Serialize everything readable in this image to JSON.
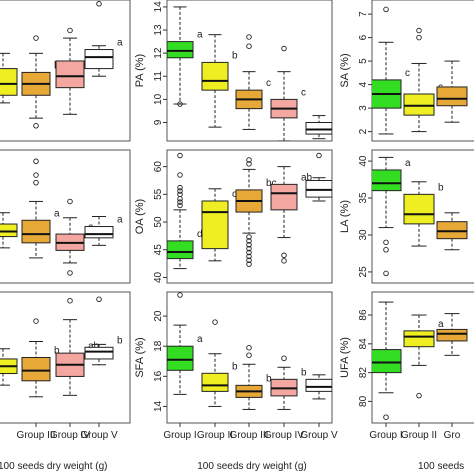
{
  "figure": {
    "bottom_labels": [
      "100 seeds dry weight (g)",
      "100 seeds dry weight (g)",
      "100 seeds"
    ]
  },
  "chart_data": [
    {
      "type": "boxplot",
      "position": "row1-col1",
      "categories": [
        "Group I",
        "Group II",
        "Group III",
        "Group IV",
        "Group V"
      ],
      "ylabel": "",
      "yticks": [],
      "ylim": [
        6.9,
        10.6
      ],
      "xticklabels_shown": false,
      "boxes": [
        {
          "group": "Group I",
          "min": 7.8,
          "q1": 8.0,
          "median": 8.3,
          "q3": 8.7,
          "max": 9.1,
          "outliers": [],
          "color": "#33dd22",
          "letter": ""
        },
        {
          "group": "Group II",
          "min": 7.9,
          "q1": 8.1,
          "median": 8.4,
          "q3": 8.8,
          "max": 9.2,
          "outliers": [],
          "color": "#eeee22",
          "letter": ""
        },
        {
          "group": "Group III",
          "min": 7.5,
          "q1": 8.1,
          "median": 8.4,
          "q3": 8.7,
          "max": 9.2,
          "outliers": [
            7.3,
            9.6
          ],
          "color": "#e8a838",
          "letter": "b"
        },
        {
          "group": "Group IV",
          "min": 7.6,
          "q1": 8.3,
          "median": 8.6,
          "q3": 9.0,
          "max": 9.6,
          "outliers": [
            9.8
          ],
          "color": "#f4a7a0",
          "letter": "b"
        },
        {
          "group": "Group V",
          "min": 8.6,
          "q1": 8.8,
          "median": 9.1,
          "q3": 9.3,
          "max": 9.4,
          "outliers": [
            10.5
          ],
          "color": "#ffffff",
          "letter": "a"
        }
      ]
    },
    {
      "type": "boxplot",
      "position": "row1-col2",
      "categories": [
        "Group I",
        "Group II",
        "Group III",
        "Group IV",
        "Group V"
      ],
      "ylabel": "PA (%)",
      "yticks": [
        9,
        10,
        11,
        12,
        13,
        14
      ],
      "ylim": [
        8.2,
        14.3
      ],
      "xticklabels_shown": false,
      "boxes": [
        {
          "group": "Group I",
          "min": 9.8,
          "q1": 11.8,
          "median": 12.1,
          "q3": 12.5,
          "max": 14.0,
          "outliers": [
            9.8
          ],
          "color": "#33dd22",
          "letter": "a"
        },
        {
          "group": "Group II",
          "min": 8.8,
          "q1": 10.4,
          "median": 10.8,
          "q3": 11.6,
          "max": 12.8,
          "outliers": [],
          "color": "#eeee22",
          "letter": "b"
        },
        {
          "group": "Group III",
          "min": 8.7,
          "q1": 9.6,
          "median": 10.0,
          "q3": 10.4,
          "max": 11.2,
          "outliers": [
            12.3,
            12.7
          ],
          "color": "#e8a838",
          "letter": "c"
        },
        {
          "group": "Group IV",
          "min": 8.2,
          "q1": 9.2,
          "median": 9.6,
          "q3": 10.0,
          "max": 11.2,
          "outliers": [
            12.2
          ],
          "color": "#f4a7a0",
          "letter": "c"
        },
        {
          "group": "Group V",
          "min": 8.3,
          "q1": 8.5,
          "median": 8.7,
          "q3": 9.0,
          "max": 9.3,
          "outliers": [],
          "color": "#ffffff",
          "letter": "d"
        }
      ]
    },
    {
      "type": "boxplot",
      "position": "row1-col3",
      "categories": [
        "Group I",
        "Group II",
        "Group III"
      ],
      "ylabel": "SA (%)",
      "yticks": [
        2,
        3,
        4,
        5,
        6,
        7
      ],
      "ylim": [
        1.6,
        7.6
      ],
      "xticklabels_shown": false,
      "boxes": [
        {
          "group": "Group I",
          "min": 1.9,
          "q1": 3.0,
          "median": 3.6,
          "q3": 4.2,
          "max": 5.8,
          "outliers": [
            7.2
          ],
          "color": "#33dd22",
          "letter": "c"
        },
        {
          "group": "Group II",
          "min": 2.0,
          "q1": 2.7,
          "median": 3.1,
          "q3": 3.6,
          "max": 4.9,
          "outliers": [
            6.0,
            6.3
          ],
          "color": "#eeee22",
          "letter": "c"
        },
        {
          "group": "Group III",
          "min": 2.4,
          "q1": 3.1,
          "median": 3.4,
          "q3": 3.9,
          "max": 5.0,
          "outliers": [],
          "color": "#e8a838",
          "letter": ""
        }
      ]
    },
    {
      "type": "boxplot",
      "position": "row2-col1",
      "categories": [
        "Group I",
        "Group II",
        "Group III",
        "Group IV",
        "Group V"
      ],
      "ylabel": "",
      "yticks": [],
      "ylim": [
        0.0,
        10.6
      ],
      "xticklabels_shown": false,
      "boxes": [
        {
          "group": "Group I",
          "min": 2.8,
          "q1": 3.6,
          "median": 4.0,
          "q3": 4.6,
          "max": 5.4,
          "outliers": [],
          "color": "#33dd22",
          "letter": ""
        },
        {
          "group": "Group II",
          "min": 2.8,
          "q1": 3.7,
          "median": 4.1,
          "q3": 4.7,
          "max": 5.6,
          "outliers": [],
          "color": "#eeee22",
          "letter": ""
        },
        {
          "group": "Group III",
          "min": 2.0,
          "q1": 3.2,
          "median": 3.9,
          "q3": 5.0,
          "max": 6.5,
          "outliers": [
            8.0,
            8.6,
            9.7
          ],
          "color": "#e8a838",
          "letter": "a"
        },
        {
          "group": "Group IV",
          "min": 1.6,
          "q1": 2.6,
          "median": 3.2,
          "q3": 3.9,
          "max": 5.2,
          "outliers": [
            0.8,
            6.5
          ],
          "color": "#f4a7a0",
          "letter": "a"
        },
        {
          "group": "Group V",
          "min": 3.0,
          "q1": 3.6,
          "median": 3.9,
          "q3": 4.5,
          "max": 5.3,
          "outliers": [],
          "color": "#ffffff",
          "letter": "a"
        }
      ]
    },
    {
      "type": "boxplot",
      "position": "row2-col2",
      "categories": [
        "Group I",
        "Group II",
        "Group III",
        "Group IV",
        "Group V"
      ],
      "ylabel": "OA (%)",
      "yticks": [
        40,
        45,
        50,
        55,
        60
      ],
      "ylim": [
        39.0,
        63.0
      ],
      "xticklabels_shown": false,
      "boxes": [
        {
          "group": "Group I",
          "min": 41.6,
          "q1": 43.4,
          "median": 44.6,
          "q3": 46.6,
          "max": 52.2,
          "outliers": [
            53.0,
            53.6,
            54.2,
            55.0,
            55.6,
            56.2,
            58.5,
            62.0
          ],
          "color": "#33dd22",
          "letter": "d"
        },
        {
          "group": "Group II",
          "min": 43.0,
          "q1": 45.2,
          "median": 51.8,
          "q3": 53.8,
          "max": 56.0,
          "outliers": [],
          "color": "#eeee22",
          "letter": "c"
        },
        {
          "group": "Group III",
          "min": 48.0,
          "q1": 51.8,
          "median": 53.8,
          "q3": 55.8,
          "max": 59.5,
          "outliers": [
            42.4,
            43.1,
            43.8,
            44.5,
            45.2,
            45.9,
            46.6,
            47.3,
            60.5,
            61.2
          ],
          "color": "#e8a838",
          "letter": "bc"
        },
        {
          "group": "Group IV",
          "min": 47.2,
          "q1": 52.2,
          "median": 55.2,
          "q3": 56.8,
          "max": 60.0,
          "outliers": [
            43.0,
            44.0
          ],
          "color": "#f4a7a0",
          "letter": "ab"
        },
        {
          "group": "Group V",
          "min": 53.8,
          "q1": 54.5,
          "median": 55.8,
          "q3": 57.5,
          "max": 58.0,
          "outliers": [
            62.0
          ],
          "color": "#ffffff",
          "letter": "a"
        }
      ]
    },
    {
      "type": "boxplot",
      "position": "row2-col3",
      "categories": [
        "Group I",
        "Group II",
        "Group III"
      ],
      "ylabel": "LA (%)",
      "yticks": [
        25,
        30,
        35,
        40
      ],
      "ylim": [
        23.5,
        41.5
      ],
      "xticklabels_shown": false,
      "boxes": [
        {
          "group": "Group I",
          "min": 31.0,
          "q1": 36.0,
          "median": 37.0,
          "q3": 38.8,
          "max": 40.5,
          "outliers": [
            24.8,
            28.0,
            29.0
          ],
          "color": "#33dd22",
          "letter": "a"
        },
        {
          "group": "Group II",
          "min": 28.5,
          "q1": 31.5,
          "median": 32.8,
          "q3": 35.5,
          "max": 37.2,
          "outliers": [],
          "color": "#eeee22",
          "letter": "b"
        },
        {
          "group": "Group III",
          "min": 28.0,
          "q1": 29.5,
          "median": 30.5,
          "q3": 31.8,
          "max": 33.0,
          "outliers": [],
          "color": "#e8a838",
          "letter": ""
        }
      ]
    },
    {
      "type": "boxplot",
      "position": "row3-col1",
      "categories": [
        "Group I",
        "Group II",
        "Group III",
        "Group IV",
        "Group V"
      ],
      "ylabel": "",
      "yticks": [],
      "ylim": [
        12.4,
        21.4
      ],
      "xticklabels": [
        "Group III",
        "Group IV",
        "Group V"
      ],
      "xlabel": "100 seeds dry weight (g)",
      "boxes": [
        {
          "group": "Group I",
          "min": 15.0,
          "q1": 15.8,
          "median": 16.2,
          "q3": 16.7,
          "max": 17.3,
          "outliers": [],
          "color": "#33dd22",
          "letter": ""
        },
        {
          "group": "Group II",
          "min": 15.0,
          "q1": 15.8,
          "median": 16.3,
          "q3": 16.8,
          "max": 17.5,
          "outliers": [],
          "color": "#eeee22",
          "letter": ""
        },
        {
          "group": "Group III",
          "min": 14.2,
          "q1": 15.3,
          "median": 16.0,
          "q3": 16.9,
          "max": 18.0,
          "outliers": [
            19.4
          ],
          "color": "#e8a838",
          "letter": "b"
        },
        {
          "group": "Group IV",
          "min": 14.3,
          "q1": 15.6,
          "median": 16.4,
          "q3": 17.2,
          "max": 19.5,
          "outliers": [
            20.8
          ],
          "color": "#f4a7a0",
          "letter": "ab"
        },
        {
          "group": "Group V",
          "min": 16.4,
          "q1": 16.8,
          "median": 17.3,
          "q3": 17.6,
          "max": 17.8,
          "outliers": [
            20.9
          ],
          "color": "#ffffff",
          "letter": "b"
        }
      ]
    },
    {
      "type": "boxplot",
      "position": "row3-col2",
      "categories": [
        "Group I",
        "Group II",
        "Group III",
        "Group IV",
        "Group V"
      ],
      "ylabel": "SFA (%)",
      "yticks": [
        14,
        16,
        18,
        20
      ],
      "ylim": [
        12.9,
        21.6
      ],
      "xticklabels": [
        "Group I",
        "Group II",
        "Group III",
        "Group IV",
        "Group V"
      ],
      "xlabel": "100 seeds dry weight (g)",
      "boxes": [
        {
          "group": "Group I",
          "min": 14.8,
          "q1": 16.4,
          "median": 17.1,
          "q3": 18.0,
          "max": 19.4,
          "outliers": [
            21.4
          ],
          "color": "#33dd22",
          "letter": "a"
        },
        {
          "group": "Group II",
          "min": 14.0,
          "q1": 15.0,
          "median": 15.4,
          "q3": 16.2,
          "max": 17.5,
          "outliers": [
            19.6
          ],
          "color": "#eeee22",
          "letter": "b"
        },
        {
          "group": "Group III",
          "min": 13.8,
          "q1": 14.6,
          "median": 15.0,
          "q3": 15.4,
          "max": 16.8,
          "outliers": [
            17.4,
            17.9
          ],
          "color": "#e8a838",
          "letter": "b"
        },
        {
          "group": "Group IV",
          "min": 13.8,
          "q1": 14.7,
          "median": 15.2,
          "q3": 15.8,
          "max": 16.6,
          "outliers": [
            17.2
          ],
          "color": "#f4a7a0",
          "letter": "b"
        },
        {
          "group": "Group V",
          "min": 14.5,
          "q1": 15.0,
          "median": 15.3,
          "q3": 15.8,
          "max": 16.1,
          "outliers": [],
          "color": "#ffffff",
          "letter": "b"
        }
      ]
    },
    {
      "type": "boxplot",
      "position": "row3-col3",
      "categories": [
        "Group I",
        "Group II",
        "Group III"
      ],
      "ylabel": "UFA (%)",
      "yticks": [
        80,
        82,
        84,
        86
      ],
      "ylim": [
        78.5,
        87.6
      ],
      "xticklabels": [
        "Group I",
        "Group II",
        "Gro"
      ],
      "xlabel": "100 seeds",
      "boxes": [
        {
          "group": "Group I",
          "min": 80.6,
          "q1": 82.0,
          "median": 82.7,
          "q3": 83.6,
          "max": 86.9,
          "outliers": [
            78.9
          ],
          "color": "#33dd22",
          "letter": "b"
        },
        {
          "group": "Group II",
          "min": 82.5,
          "q1": 83.8,
          "median": 84.5,
          "q3": 84.9,
          "max": 86.0,
          "outliers": [
            80.4
          ],
          "color": "#eeee22",
          "letter": "a"
        },
        {
          "group": "Group III",
          "min": 83.2,
          "q1": 84.2,
          "median": 84.7,
          "q3": 85.0,
          "max": 86.1,
          "outliers": [],
          "color": "#e8a838",
          "letter": ""
        }
      ]
    }
  ]
}
